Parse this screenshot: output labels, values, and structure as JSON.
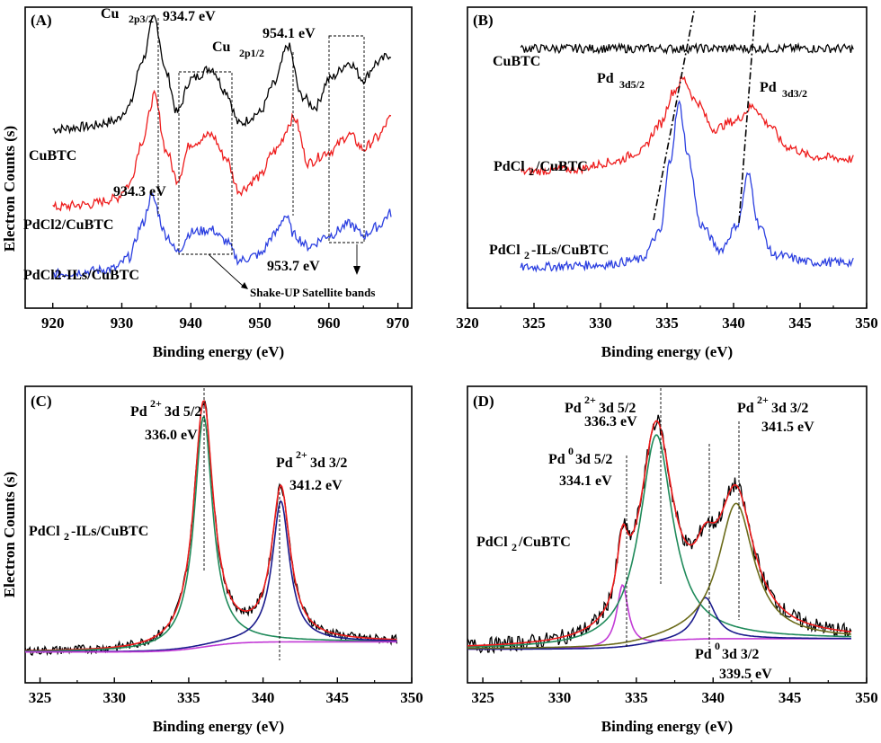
{
  "colors": {
    "black": "#000000",
    "red": "#ee1c1c",
    "blue": "#2b3fe0",
    "green": "#1f8a5a",
    "magenta": "#c23ad6",
    "navy": "#1a1a8c",
    "olive": "#6b6b1a"
  },
  "chart_data": [
    {
      "id": "A",
      "type": "line",
      "panel_label": "(A)",
      "xlabel": "Binding energy (eV)",
      "ylabel": "Electron Counts (s)",
      "xlim": [
        916,
        972
      ],
      "xticks": [
        920,
        930,
        940,
        950,
        960,
        970
      ],
      "series": [
        {
          "name": "CuBTC",
          "color": "black",
          "x": [
            920,
            925,
            929,
            931,
            933,
            934.7,
            936.5,
            938,
            940,
            943,
            945,
            947,
            950,
            952,
            954.1,
            956,
            958,
            960,
            963,
            965,
            967,
            969
          ],
          "y": [
            0.6,
            0.61,
            0.63,
            0.68,
            0.85,
            1.0,
            0.8,
            0.66,
            0.78,
            0.82,
            0.74,
            0.62,
            0.66,
            0.76,
            0.9,
            0.72,
            0.68,
            0.78,
            0.84,
            0.78,
            0.84,
            0.87
          ]
        },
        {
          "name": "PdCl2/CuBTC",
          "color": "red",
          "x": [
            920,
            925,
            929,
            931,
            933,
            934.7,
            936.5,
            938,
            940,
            943,
            945,
            947,
            950,
            952,
            955,
            957,
            960,
            963,
            965,
            967,
            969
          ],
          "y": [
            0.32,
            0.33,
            0.35,
            0.4,
            0.56,
            0.72,
            0.52,
            0.42,
            0.55,
            0.58,
            0.5,
            0.38,
            0.43,
            0.52,
            0.64,
            0.48,
            0.52,
            0.58,
            0.53,
            0.57,
            0.64
          ]
        },
        {
          "name": "PdCl2-ILs/CuBTC",
          "color": "blue",
          "x": [
            920,
            925,
            929,
            931,
            933,
            934.3,
            936.5,
            938,
            940,
            943,
            945,
            947,
            950,
            952,
            953.7,
            955,
            957,
            960,
            963,
            965,
            967,
            969
          ],
          "y": [
            0.08,
            0.09,
            0.1,
            0.14,
            0.26,
            0.36,
            0.22,
            0.16,
            0.23,
            0.24,
            0.2,
            0.13,
            0.15,
            0.22,
            0.29,
            0.22,
            0.18,
            0.22,
            0.26,
            0.22,
            0.25,
            0.3
          ]
        }
      ],
      "annotations": {
        "cu_2p32": "Cu",
        "cu_2p32_sub": "2p3/2",
        "e1": "934.7 eV",
        "cu_2p12": "Cu",
        "cu_2p12_sub": "2p1/2",
        "e2": "954.1 eV",
        "e3": "934.3 eV",
        "e4": "953.7 eV",
        "shake": "Shake-UP Satellite bands"
      }
    },
    {
      "id": "B",
      "type": "line",
      "panel_label": "(B)",
      "xlabel": "Binding energy (eV)",
      "ylabel": "",
      "xlim": [
        320,
        350
      ],
      "xticks": [
        320,
        325,
        330,
        335,
        340,
        345,
        350
      ],
      "series": [
        {
          "name": "CuBTC",
          "color": "black",
          "x": [
            324,
            330,
            336,
            342,
            349
          ],
          "y": [
            0.95,
            0.95,
            0.95,
            0.95,
            0.95
          ]
        },
        {
          "name": "PdCl2/CuBTC",
          "color": "red",
          "x": [
            324,
            328,
            331,
            333,
            334.5,
            335.5,
            336.2,
            337.2,
            338.5,
            340,
            341.5,
            342.6,
            344,
            346,
            349
          ],
          "y": [
            0.46,
            0.47,
            0.5,
            0.54,
            0.65,
            0.78,
            0.83,
            0.74,
            0.63,
            0.66,
            0.72,
            0.65,
            0.56,
            0.52,
            0.51
          ]
        },
        {
          "name": "PdCl2-ILs/CuBTC",
          "color": "blue",
          "x": [
            324,
            330,
            333,
            334.5,
            335.2,
            335.9,
            336.6,
            337.5,
            339,
            340.3,
            341.1,
            341.9,
            343,
            346,
            349
          ],
          "y": [
            0.08,
            0.09,
            0.11,
            0.22,
            0.5,
            0.73,
            0.52,
            0.25,
            0.15,
            0.25,
            0.45,
            0.25,
            0.13,
            0.1,
            0.1
          ]
        }
      ],
      "annotations": {
        "cubtc": "CuBTC",
        "pd35": "Pd",
        "pd35_sub": "3d5/2",
        "pd33": "Pd",
        "pd33_sub": "3d3/2",
        "pdcl2_a": "PdCl",
        "pdcl2_sub": "2",
        "pdcl2_b": "/CuBTC",
        "ils_a": "PdCl",
        "ils_sub": "2",
        "ils_b": "-ILs/CuBTC"
      }
    },
    {
      "id": "C",
      "type": "line",
      "panel_label": "(C)",
      "xlabel": "Binding energy (eV)",
      "ylabel": "Electron Counts (s)",
      "xlim": [
        324,
        350
      ],
      "xticks": [
        325,
        330,
        335,
        340,
        345,
        350
      ],
      "series": [
        {
          "name": "raw",
          "color": "black",
          "center_peaks": [
            [
              336.0,
              0.98,
              0.8
            ],
            [
              341.2,
              0.62,
              0.75
            ]
          ],
          "baseline": 0.05
        },
        {
          "name": "envelope",
          "color": "red",
          "center_peaks": [
            [
              336.0,
              1.0,
              0.8
            ],
            [
              341.2,
              0.64,
              0.75
            ]
          ],
          "baseline": 0.05
        },
        {
          "name": "Pd2+ 3d 5/2",
          "color": "green",
          "center_peaks": [
            [
              336.0,
              0.95,
              0.75
            ]
          ],
          "baseline": 0.05
        },
        {
          "name": "Pd2+ 3d 3/2",
          "color": "navy",
          "center_peaks": [
            [
              341.2,
              0.6,
              0.7
            ]
          ],
          "baseline": 0.05
        },
        {
          "name": "background",
          "color": "magenta",
          "center_peaks": [],
          "baseline": 0.05
        }
      ],
      "annotations": {
        "p1": "Pd",
        "p1_sup": "2+",
        "p1_rest": " 3d 5/2",
        "p1_e": "336.0 eV",
        "p2": "Pd",
        "p2_sup": "2+",
        "p2_rest": " 3d 3/2",
        "p2_e": "341.2 eV",
        "sample_a": "PdCl",
        "sample_sub": "2",
        "sample_b": "-ILs/CuBTC"
      }
    },
    {
      "id": "D",
      "type": "line",
      "panel_label": "(D)",
      "xlabel": "Binding energy (eV)",
      "ylabel": "",
      "xlim": [
        324,
        350
      ],
      "xticks": [
        325,
        330,
        335,
        340,
        345,
        350
      ],
      "series": [
        {
          "name": "Pd0 3d 5/2",
          "color": "magenta",
          "center_peaks": [
            [
              334.1,
              0.3,
              0.45
            ]
          ],
          "baseline": 0.06
        },
        {
          "name": "Pd2+ 3d 5/2",
          "color": "green",
          "center_peaks": [
            [
              336.3,
              0.86,
              1.3
            ]
          ],
          "baseline": 0.06
        },
        {
          "name": "Pd0 3d 3/2",
          "color": "navy",
          "center_peaks": [
            [
              339.5,
              0.22,
              0.8
            ]
          ],
          "baseline": 0.06
        },
        {
          "name": "Pd2+ 3d 3/2",
          "color": "olive",
          "center_peaks": [
            [
              341.5,
              0.58,
              1.4
            ]
          ],
          "baseline": 0.06
        },
        {
          "name": "envelope",
          "color": "red",
          "center_peaks": [
            [
              334.1,
              0.3,
              0.45
            ],
            [
              336.3,
              0.86,
              1.3
            ],
            [
              339.5,
              0.22,
              0.8
            ],
            [
              341.5,
              0.58,
              1.4
            ]
          ],
          "baseline": 0.06
        }
      ],
      "annotations": {
        "a1": "Pd",
        "a1_sup": "2+",
        "a1_rest": " 3d 5/2",
        "a1_e": "336.3 eV",
        "a2": "Pd",
        "a2_sup": "2+",
        "a2_rest": " 3d 3/2",
        "a2_e": "341.5 eV",
        "a3": "Pd",
        "a3_sup": "0",
        "a3_rest": " 3d 5/2",
        "a3_e": "334.1 eV",
        "a4": "Pd",
        "a4_sup": "0",
        "a4_rest": " 3d 3/2",
        "a4_e": "339.5 eV",
        "sample_a": "PdCl",
        "sample_sub": "2",
        "sample_b": "/CuBTC"
      }
    }
  ]
}
